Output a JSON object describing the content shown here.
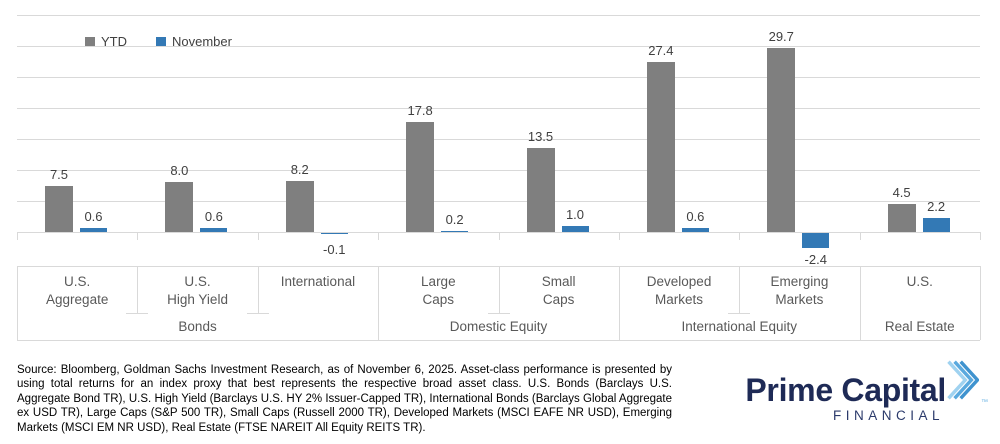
{
  "chart_data": {
    "type": "bar",
    "legend_position": "top-left",
    "grid": true,
    "ylim": [
      -5,
      35
    ],
    "gridline_step": 5,
    "categories": [
      {
        "lines": [
          "U.S.",
          "Aggregate"
        ],
        "group": "Bonds"
      },
      {
        "lines": [
          "U.S.",
          "High Yield"
        ],
        "group": "Bonds"
      },
      {
        "lines": [
          "International"
        ],
        "group": "Bonds"
      },
      {
        "lines": [
          "Large",
          "Caps"
        ],
        "group": "Domestic Equity"
      },
      {
        "lines": [
          "Small",
          "Caps"
        ],
        "group": "Domestic Equity"
      },
      {
        "lines": [
          "Developed",
          "Markets"
        ],
        "group": "International Equity"
      },
      {
        "lines": [
          "Emerging",
          "Markets"
        ],
        "group": "International Equity"
      },
      {
        "lines": [
          "U.S."
        ],
        "group": "Real Estate"
      }
    ],
    "groups": [
      {
        "label": "Bonds",
        "span": 3
      },
      {
        "label": "Domestic Equity",
        "span": 2
      },
      {
        "label": "International Equity",
        "span": 2
      },
      {
        "label": "Real Estate",
        "span": 1
      }
    ],
    "series": [
      {
        "name": "YTD",
        "color": "#7F7F7F",
        "values": [
          7.5,
          8.0,
          8.2,
          17.8,
          13.5,
          27.4,
          29.7,
          4.5
        ]
      },
      {
        "name": "November",
        "color": "#3379B5",
        "values": [
          0.6,
          0.6,
          -0.1,
          0.2,
          1.0,
          0.6,
          -2.4,
          2.2
        ]
      }
    ],
    "colors": {
      "gridline": "#D9D9D9",
      "label_text": "#404040",
      "category_text": "#595959"
    }
  },
  "footer": {
    "source_text": "Source: Bloomberg, Goldman Sachs Investment Research, as of November 6, 2025. Asset-class performance is presented by using total returns for an index proxy that best represents the respective broad asset class. U.S. Bonds (Barclays U.S. Aggregate Bond TR), U.S. High Yield (Barclays U.S. HY 2% Issuer-Capped TR), International Bonds (Barclays Global Aggregate ex USD TR), Large Caps (S&P 500 TR), Small Caps (Russell 2000 TR), Developed Markets (MSCI EAFE NR USD), Emerging Markets (MSCI EM NR USD), Real Estate (FTSE NAREIT All Equity REITS TR)."
  },
  "logo": {
    "title": "Prime Capital",
    "subtitle": "FINANCIAL",
    "trademark": "™",
    "colors": {
      "navy": "#1E2A56",
      "subtitle_navy": "#2B3A6B",
      "chevron_stripes": [
        "#9FD2F0",
        "#5AA9DE",
        "#3F93CF"
      ]
    }
  }
}
